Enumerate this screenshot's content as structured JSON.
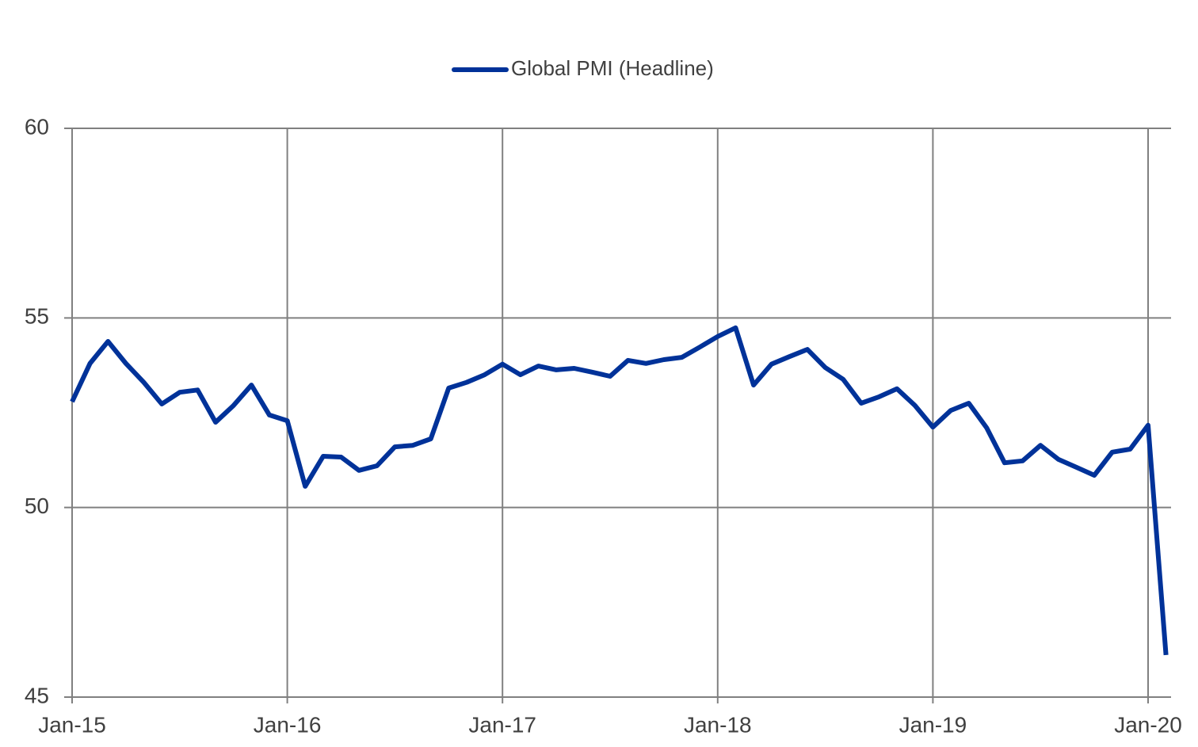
{
  "chart_data": {
    "type": "line",
    "categories": [
      "Jan-15",
      null,
      null,
      null,
      null,
      null,
      null,
      null,
      null,
      null,
      null,
      null,
      "Jan-16",
      null,
      null,
      null,
      null,
      null,
      null,
      null,
      null,
      null,
      null,
      null,
      "Jan-17",
      null,
      null,
      null,
      null,
      null,
      null,
      null,
      null,
      null,
      null,
      null,
      "Jan-18",
      null,
      null,
      null,
      null,
      null,
      null,
      null,
      null,
      null,
      null,
      null,
      "Jan-19",
      null,
      null,
      null,
      null,
      null,
      null,
      null,
      null,
      null,
      null,
      null,
      "Jan-20",
      null
    ],
    "series": [
      {
        "name": "Global PMI (Headline)",
        "color": "#003299",
        "values": [
          52.79,
          53.8,
          54.38,
          53.8,
          53.3,
          52.73,
          53.04,
          53.1,
          52.25,
          52.69,
          53.23,
          52.44,
          52.29,
          50.56,
          51.35,
          51.33,
          50.98,
          51.1,
          51.6,
          51.64,
          51.81,
          53.15,
          53.3,
          53.5,
          53.78,
          53.5,
          53.73,
          53.63,
          53.67,
          53.57,
          53.46,
          53.88,
          53.8,
          53.9,
          53.96,
          54.23,
          54.51,
          54.74,
          53.23,
          53.78,
          53.98,
          54.17,
          53.69,
          53.38,
          52.75,
          52.92,
          53.13,
          52.69,
          52.12,
          52.56,
          52.75,
          52.1,
          51.18,
          51.23,
          51.64,
          51.27,
          51.06,
          50.85,
          51.46,
          51.54,
          52.17,
          46.11
        ]
      }
    ],
    "ylim": [
      45,
      60
    ],
    "yticks": [
      45,
      50,
      55,
      60
    ],
    "grid": true,
    "legend": "top"
  }
}
